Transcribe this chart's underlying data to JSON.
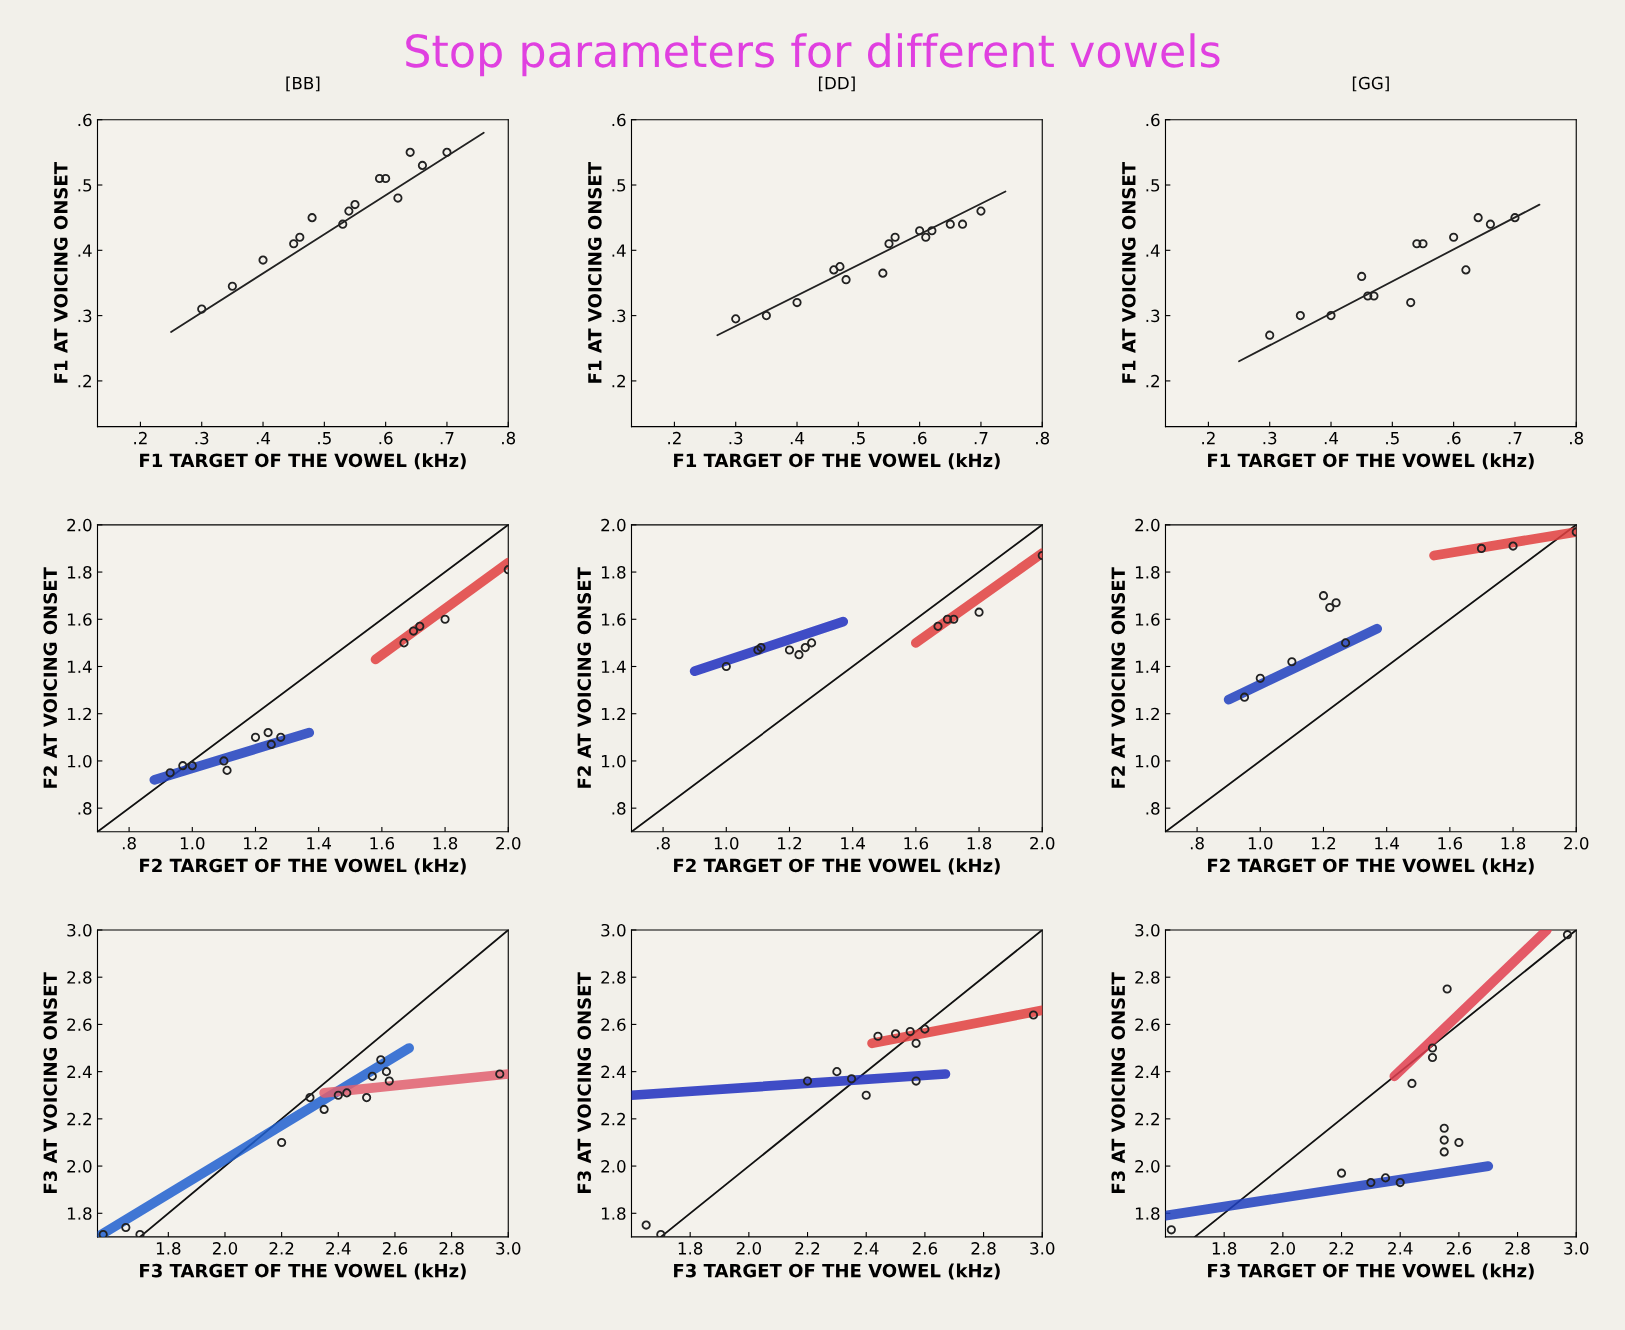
{
  "chart_data": [
    {
      "type": "scatter",
      "title": "[BB]",
      "annotations": [
        "Stop parameters for different vowels"
      ],
      "xlabel": "F1 TARGET OF THE VOWEL (kHz)",
      "ylabel": "F1 AT VOICING ONSET",
      "xlim": [
        0.13,
        0.8
      ],
      "ylim": [
        0.13,
        0.6
      ],
      "xticks": [
        {
          "value": 0.2,
          "label": ".2"
        },
        {
          "value": 0.3,
          "label": ".3"
        },
        {
          "value": 0.4,
          "label": ".4"
        },
        {
          "value": 0.5,
          "label": ".5"
        },
        {
          "value": 0.6,
          "label": ".6"
        },
        {
          "value": 0.7,
          "label": ".7"
        },
        {
          "value": 0.8,
          "label": ".8"
        }
      ],
      "yticks": [
        {
          "value": 0.2,
          "label": ".2"
        },
        {
          "value": 0.3,
          "label": ".3"
        },
        {
          "value": 0.4,
          "label": ".4"
        },
        {
          "value": 0.5,
          "label": ".5"
        },
        {
          "value": 0.6,
          "label": ".6"
        }
      ],
      "grid": false,
      "series": [
        {
          "color": "#222222",
          "marker": "circle",
          "x": [
            0.3,
            0.35,
            0.4,
            0.45,
            0.46,
            0.48,
            0.53,
            0.54,
            0.55,
            0.59,
            0.6,
            0.62,
            0.64,
            0.66,
            0.7
          ],
          "values": [
            0.31,
            0.345,
            0.385,
            0.41,
            0.42,
            0.45,
            0.44,
            0.46,
            0.47,
            0.51,
            0.51,
            0.48,
            0.55,
            0.53,
            0.55
          ]
        },
        {
          "type": "line",
          "color": "#222222",
          "marker": "none",
          "x": [
            0.25,
            0.76
          ],
          "values": [
            0.275,
            0.58
          ]
        }
      ]
    },
    {
      "type": "scatter",
      "title": "[DD]",
      "xlabel": "F1 TARGET OF THE VOWEL (kHz)",
      "ylabel": "F1 AT VOICING ONSET",
      "xlim": [
        0.13,
        0.8
      ],
      "ylim": [
        0.13,
        0.6
      ],
      "xticks": [
        {
          "value": 0.2,
          "label": ".2"
        },
        {
          "value": 0.3,
          "label": ".3"
        },
        {
          "value": 0.4,
          "label": ".4"
        },
        {
          "value": 0.5,
          "label": ".5"
        },
        {
          "value": 0.6,
          "label": ".6"
        },
        {
          "value": 0.7,
          "label": ".7"
        },
        {
          "value": 0.8,
          "label": ".8"
        }
      ],
      "yticks": [
        {
          "value": 0.2,
          "label": ".2"
        },
        {
          "value": 0.3,
          "label": ".3"
        },
        {
          "value": 0.4,
          "label": ".4"
        },
        {
          "value": 0.5,
          "label": ".5"
        },
        {
          "value": 0.6,
          "label": ".6"
        }
      ],
      "grid": false,
      "series": [
        {
          "color": "#222222",
          "marker": "circle",
          "x": [
            0.3,
            0.35,
            0.4,
            0.46,
            0.47,
            0.48,
            0.54,
            0.55,
            0.56,
            0.6,
            0.61,
            0.62,
            0.65,
            0.67,
            0.7
          ],
          "values": [
            0.295,
            0.3,
            0.32,
            0.37,
            0.375,
            0.355,
            0.365,
            0.41,
            0.42,
            0.43,
            0.42,
            0.43,
            0.44,
            0.44,
            0.46
          ]
        },
        {
          "type": "line",
          "color": "#222222",
          "marker": "none",
          "x": [
            0.27,
            0.74
          ],
          "values": [
            0.27,
            0.49
          ]
        }
      ]
    },
    {
      "type": "scatter",
      "title": "[GG]",
      "xlabel": "F1 TARGET OF THE VOWEL (kHz)",
      "ylabel": "F1 AT VOICING ONSET",
      "xlim": [
        0.13,
        0.8
      ],
      "ylim": [
        0.13,
        0.6
      ],
      "xticks": [
        {
          "value": 0.2,
          "label": ".2"
        },
        {
          "value": 0.3,
          "label": ".3"
        },
        {
          "value": 0.4,
          "label": ".4"
        },
        {
          "value": 0.5,
          "label": ".5"
        },
        {
          "value": 0.6,
          "label": ".6"
        },
        {
          "value": 0.7,
          "label": ".7"
        },
        {
          "value": 0.8,
          "label": ".8"
        }
      ],
      "yticks": [
        {
          "value": 0.2,
          "label": ".2"
        },
        {
          "value": 0.3,
          "label": ".3"
        },
        {
          "value": 0.4,
          "label": ".4"
        },
        {
          "value": 0.5,
          "label": ".5"
        },
        {
          "value": 0.6,
          "label": ".6"
        }
      ],
      "grid": false,
      "series": [
        {
          "color": "#222222",
          "marker": "circle",
          "x": [
            0.3,
            0.35,
            0.4,
            0.45,
            0.46,
            0.47,
            0.53,
            0.54,
            0.55,
            0.6,
            0.62,
            0.64,
            0.66,
            0.7
          ],
          "values": [
            0.27,
            0.3,
            0.3,
            0.36,
            0.33,
            0.33,
            0.32,
            0.41,
            0.41,
            0.42,
            0.37,
            0.45,
            0.44,
            0.45
          ]
        },
        {
          "type": "line",
          "color": "#222222",
          "marker": "none",
          "x": [
            0.25,
            0.74
          ],
          "values": [
            0.23,
            0.47
          ]
        }
      ]
    },
    {
      "type": "scatter",
      "xlabel": "F2 TARGET OF THE VOWEL (kHz)",
      "ylabel": "F2 AT VOICING ONSET",
      "xlim": [
        0.7,
        2.0
      ],
      "ylim": [
        0.7,
        2.0
      ],
      "xticks": [
        {
          "value": 0.8,
          "label": ".8"
        },
        {
          "value": 1.0,
          "label": "1.0"
        },
        {
          "value": 1.2,
          "label": "1.2"
        },
        {
          "value": 1.4,
          "label": "1.4"
        },
        {
          "value": 1.6,
          "label": "1.6"
        },
        {
          "value": 1.8,
          "label": "1.8"
        },
        {
          "value": 2.0,
          "label": "2.0"
        }
      ],
      "yticks": [
        {
          "value": 0.8,
          "label": ".8"
        },
        {
          "value": 1.0,
          "label": "1.0"
        },
        {
          "value": 1.2,
          "label": "1.2"
        },
        {
          "value": 1.4,
          "label": "1.4"
        },
        {
          "value": 1.6,
          "label": "1.6"
        },
        {
          "value": 1.8,
          "label": "1.8"
        },
        {
          "value": 2.0,
          "label": "2.0"
        }
      ],
      "grid": false,
      "series": [
        {
          "type": "line",
          "color": "#111111",
          "marker": "none",
          "x": [
            0.7,
            2.0
          ],
          "values": [
            0.7,
            2.0
          ]
        },
        {
          "type": "line",
          "color": "#1f3fbf",
          "marker": "none",
          "x": [
            0.88,
            1.37
          ],
          "values": [
            0.92,
            1.12
          ]
        },
        {
          "type": "line",
          "color": "#e04040",
          "marker": "none",
          "x": [
            1.58,
            2.0
          ],
          "values": [
            1.43,
            1.84
          ]
        },
        {
          "color": "#222222",
          "marker": "circle",
          "x": [
            0.93,
            0.97,
            1.0,
            1.1,
            1.11,
            1.2,
            1.24,
            1.25,
            1.28,
            1.67,
            1.7,
            1.72,
            1.8,
            2.0
          ],
          "values": [
            0.95,
            0.98,
            0.98,
            1.0,
            0.96,
            1.1,
            1.12,
            1.07,
            1.1,
            1.5,
            1.55,
            1.57,
            1.6,
            1.81
          ]
        }
      ]
    },
    {
      "type": "scatter",
      "xlabel": "F2 TARGET OF THE VOWEL (kHz)",
      "ylabel": "F2 AT VOICING ONSET",
      "xlim": [
        0.7,
        2.0
      ],
      "ylim": [
        0.7,
        2.0
      ],
      "xticks": [
        {
          "value": 0.8,
          "label": ".8"
        },
        {
          "value": 1.0,
          "label": "1.0"
        },
        {
          "value": 1.2,
          "label": "1.2"
        },
        {
          "value": 1.4,
          "label": "1.4"
        },
        {
          "value": 1.6,
          "label": "1.6"
        },
        {
          "value": 1.8,
          "label": "1.8"
        },
        {
          "value": 2.0,
          "label": "2.0"
        }
      ],
      "yticks": [
        {
          "value": 0.8,
          "label": ".8"
        },
        {
          "value": 1.0,
          "label": "1.0"
        },
        {
          "value": 1.2,
          "label": "1.2"
        },
        {
          "value": 1.4,
          "label": "1.4"
        },
        {
          "value": 1.6,
          "label": "1.6"
        },
        {
          "value": 1.8,
          "label": "1.8"
        },
        {
          "value": 2.0,
          "label": "2.0"
        }
      ],
      "grid": false,
      "series": [
        {
          "type": "line",
          "color": "#111111",
          "marker": "none",
          "x": [
            0.7,
            2.0
          ],
          "values": [
            0.7,
            2.0
          ]
        },
        {
          "type": "line",
          "color": "#1f2fbf",
          "marker": "none",
          "x": [
            0.9,
            1.37
          ],
          "values": [
            1.38,
            1.59
          ]
        },
        {
          "type": "line",
          "color": "#e04040",
          "marker": "none",
          "x": [
            1.6,
            2.0
          ],
          "values": [
            1.5,
            1.88
          ]
        },
        {
          "color": "#222222",
          "marker": "circle",
          "x": [
            1.0,
            1.1,
            1.11,
            1.2,
            1.23,
            1.25,
            1.27,
            1.67,
            1.7,
            1.72,
            1.8,
            2.0
          ],
          "values": [
            1.4,
            1.47,
            1.48,
            1.47,
            1.45,
            1.48,
            1.5,
            1.57,
            1.6,
            1.6,
            1.63,
            1.87
          ]
        }
      ]
    },
    {
      "type": "scatter",
      "xlabel": "F2 TARGET OF THE VOWEL (kHz)",
      "ylabel": "F2 AT VOICING ONSET",
      "xlim": [
        0.7,
        2.0
      ],
      "ylim": [
        0.7,
        2.0
      ],
      "xticks": [
        {
          "value": 0.8,
          "label": ".8"
        },
        {
          "value": 1.0,
          "label": "1.0"
        },
        {
          "value": 1.2,
          "label": "1.2"
        },
        {
          "value": 1.4,
          "label": "1.4"
        },
        {
          "value": 1.6,
          "label": "1.6"
        },
        {
          "value": 1.8,
          "label": "1.8"
        },
        {
          "value": 2.0,
          "label": "2.0"
        }
      ],
      "yticks": [
        {
          "value": 0.8,
          "label": ".8"
        },
        {
          "value": 1.0,
          "label": "1.0"
        },
        {
          "value": 1.2,
          "label": "1.2"
        },
        {
          "value": 1.4,
          "label": "1.4"
        },
        {
          "value": 1.6,
          "label": "1.6"
        },
        {
          "value": 1.8,
          "label": "1.8"
        },
        {
          "value": 2.0,
          "label": "2.0"
        }
      ],
      "grid": false,
      "series": [
        {
          "type": "line",
          "color": "#111111",
          "marker": "none",
          "x": [
            0.7,
            2.0
          ],
          "values": [
            0.7,
            2.0
          ]
        },
        {
          "type": "line",
          "color": "#1f3fbf",
          "marker": "none",
          "x": [
            0.9,
            1.37
          ],
          "values": [
            1.26,
            1.56
          ]
        },
        {
          "type": "line",
          "color": "#e04040",
          "marker": "none",
          "x": [
            1.55,
            2.0
          ],
          "values": [
            1.87,
            1.97
          ]
        },
        {
          "color": "#222222",
          "marker": "circle",
          "x": [
            0.95,
            1.0,
            1.1,
            1.2,
            1.22,
            1.24,
            1.27,
            1.7,
            1.8,
            2.0
          ],
          "values": [
            1.27,
            1.35,
            1.42,
            1.7,
            1.65,
            1.67,
            1.5,
            1.9,
            1.91,
            1.97
          ]
        }
      ]
    },
    {
      "type": "scatter",
      "xlabel": "F3 TARGET OF THE VOWEL (kHz)",
      "ylabel": "F3 AT VOICING ONSET",
      "xlim": [
        1.55,
        3.0
      ],
      "ylim": [
        1.7,
        3.0
      ],
      "xticks": [
        1.8,
        {
          "value": 2.0,
          "label": "2.0"
        },
        2.2,
        2.4,
        2.6,
        2.8,
        {
          "value": 3.0,
          "label": "3.0"
        }
      ],
      "yticks": [
        1.8,
        {
          "value": 2.0,
          "label": "2.0"
        },
        2.2,
        2.4,
        2.6,
        2.8,
        {
          "value": 3.0,
          "label": "3.0"
        }
      ],
      "grid": false,
      "series": [
        {
          "type": "line",
          "color": "#111111",
          "marker": "none",
          "x": [
            1.7,
            3.0
          ],
          "values": [
            1.7,
            3.0
          ]
        },
        {
          "type": "line",
          "color": "#2060d0",
          "marker": "none",
          "x": [
            1.55,
            2.65
          ],
          "values": [
            1.7,
            2.5
          ]
        },
        {
          "type": "line",
          "color": "#e06070",
          "marker": "none",
          "x": [
            2.35,
            3.0
          ],
          "values": [
            2.31,
            2.39
          ]
        },
        {
          "color": "#222222",
          "marker": "circle",
          "x": [
            1.57,
            1.65,
            1.7,
            2.2,
            2.3,
            2.35,
            2.4,
            2.43,
            2.5,
            2.52,
            2.55,
            2.57,
            2.58,
            2.97
          ],
          "values": [
            1.71,
            1.74,
            1.71,
            2.1,
            2.29,
            2.24,
            2.3,
            2.31,
            2.29,
            2.38,
            2.45,
            2.4,
            2.36,
            2.39
          ]
        }
      ]
    },
    {
      "type": "scatter",
      "xlabel": "F3 TARGET OF THE VOWEL (kHz)",
      "ylabel": "F3 AT VOICING ONSET",
      "xlim": [
        1.6,
        3.0
      ],
      "ylim": [
        1.7,
        3.0
      ],
      "xticks": [
        1.8,
        {
          "value": 2.0,
          "label": "2.0"
        },
        2.2,
        2.4,
        2.6,
        2.8,
        {
          "value": 3.0,
          "label": "3.0"
        }
      ],
      "yticks": [
        1.8,
        {
          "value": 2.0,
          "label": "2.0"
        },
        2.2,
        2.4,
        2.6,
        2.8,
        {
          "value": 3.0,
          "label": "3.0"
        }
      ],
      "grid": false,
      "series": [
        {
          "type": "line",
          "color": "#111111",
          "marker": "none",
          "x": [
            1.7,
            3.0
          ],
          "values": [
            1.7,
            3.0
          ]
        },
        {
          "type": "line",
          "color": "#1f2fbf",
          "marker": "none",
          "x": [
            1.6,
            2.67
          ],
          "values": [
            2.3,
            2.39
          ]
        },
        {
          "type": "line",
          "color": "#e04040",
          "marker": "none",
          "x": [
            2.42,
            3.0
          ],
          "values": [
            2.52,
            2.66
          ]
        },
        {
          "color": "#222222",
          "marker": "circle",
          "x": [
            1.65,
            1.7,
            2.2,
            2.3,
            2.35,
            2.4,
            2.44,
            2.5,
            2.55,
            2.57,
            2.6,
            2.57,
            2.97
          ],
          "values": [
            1.75,
            1.71,
            2.36,
            2.4,
            2.37,
            2.3,
            2.55,
            2.56,
            2.57,
            2.52,
            2.58,
            2.36,
            2.64
          ]
        }
      ]
    },
    {
      "type": "scatter",
      "xlabel": "F3 TARGET OF THE VOWEL (kHz)",
      "ylabel": "F3 AT VOICING ONSET",
      "xlim": [
        1.6,
        3.0
      ],
      "ylim": [
        1.7,
        3.0
      ],
      "xticks": [
        1.8,
        {
          "value": 2.0,
          "label": "2.0"
        },
        2.2,
        2.4,
        2.6,
        2.8,
        {
          "value": 3.0,
          "label": "3.0"
        }
      ],
      "yticks": [
        1.8,
        {
          "value": 2.0,
          "label": "2.0"
        },
        2.2,
        2.4,
        2.6,
        2.8,
        {
          "value": 3.0,
          "label": "3.0"
        }
      ],
      "grid": false,
      "series": [
        {
          "type": "line",
          "color": "#111111",
          "marker": "none",
          "x": [
            1.7,
            3.0
          ],
          "values": [
            1.7,
            3.0
          ]
        },
        {
          "type": "line",
          "color": "#1f3fbf",
          "marker": "none",
          "x": [
            1.6,
            2.7
          ],
          "values": [
            1.79,
            2.0
          ]
        },
        {
          "type": "line",
          "color": "#e04050",
          "marker": "none",
          "x": [
            2.38,
            2.9
          ],
          "values": [
            2.38,
            3.0
          ]
        },
        {
          "color": "#222222",
          "marker": "circle",
          "x": [
            1.62,
            2.2,
            2.3,
            2.35,
            2.4,
            2.44,
            2.51,
            2.51,
            2.56,
            2.55,
            2.55,
            2.55,
            2.6,
            2.97
          ],
          "values": [
            1.73,
            1.97,
            1.93,
            1.95,
            1.93,
            2.35,
            2.46,
            2.5,
            2.75,
            2.06,
            2.11,
            2.16,
            2.1,
            2.98
          ]
        }
      ]
    }
  ]
}
